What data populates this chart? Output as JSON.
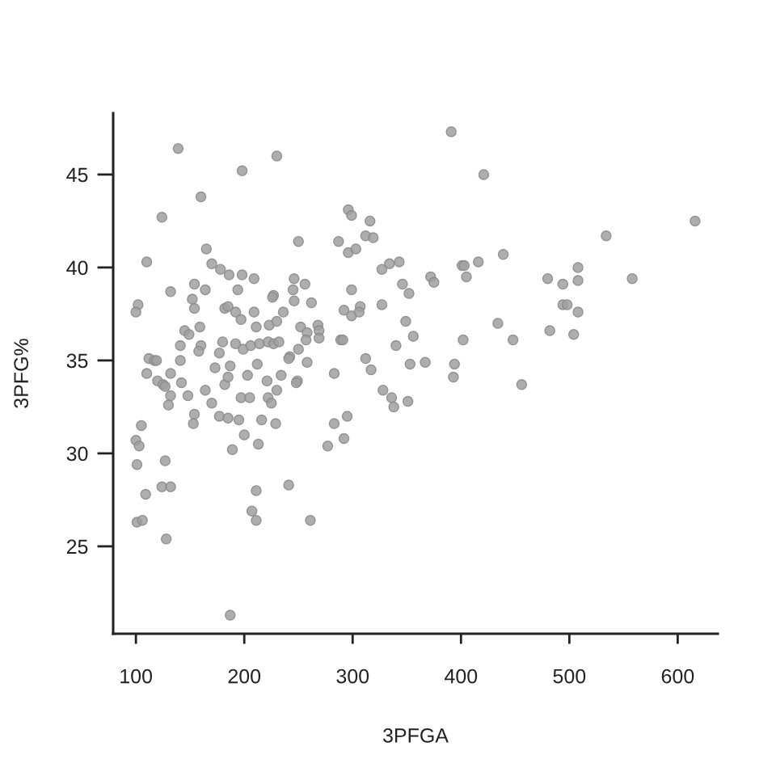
{
  "chart_data": {
    "type": "scatter",
    "xlabel": "3PFGA",
    "ylabel": "3PFG%",
    "marker": "circle",
    "xlim": [
      79,
      637
    ],
    "ylim": [
      20.3,
      48.3
    ],
    "xticks": [
      100,
      200,
      300,
      400,
      500,
      600
    ],
    "yticks": [
      25,
      30,
      35,
      40,
      45
    ],
    "series": [
      {
        "color": "#a0a0a0",
        "x": [
          139,
          230,
          198,
          160,
          124,
          296,
          299,
          316,
          312,
          319,
          287,
          296,
          303,
          250,
          165,
          110,
          170,
          178,
          186,
          198,
          209,
          132,
          154,
          164,
          152,
          154,
          102,
          100,
          194,
          182,
          185,
          192,
          197,
          209,
          227,
          226,
          246,
          256,
          245,
          246,
          262,
          236,
          211,
          223,
          230,
          159,
          145,
          149,
          252,
          258,
          268,
          269,
          257,
          269,
          289,
          291,
          299,
          292,
          299,
          307,
          306,
          327,
          327,
          334,
          343,
          346,
          349,
          340,
          312,
          353,
          141,
          160,
          158,
          180,
          177,
          192,
          199,
          206,
          214,
          222,
          227,
          232,
          250,
          242,
          241,
          258,
          212,
          141,
          112,
          117,
          119,
          173,
          187,
          110,
          132,
          120,
          125,
          127,
          142,
          132,
          130,
          148,
          164,
          170,
          154,
          153,
          177,
          185,
          195,
          182,
          185,
          203,
          197,
          205,
          200,
          189,
          216,
          213,
          221,
          222,
          225,
          230,
          234,
          249,
          248,
          229,
          283,
          317,
          328,
          336,
          338,
          351,
          295,
          283,
          277,
          292,
          105,
          100,
          103,
          101,
          127,
          109,
          124,
          132,
          101,
          106,
          128,
          187,
          211,
          241,
          207,
          211,
          261,
          391,
          421,
          616,
          534,
          439,
          416,
          401,
          403,
          405,
          372,
          375,
          352,
          480,
          494,
          508,
          508,
          558,
          494,
          498,
          508,
          434,
          448,
          402,
          482,
          504,
          356,
          367,
          394,
          393,
          456
        ],
        "values": [
          46.4,
          46.0,
          45.2,
          43.8,
          42.7,
          43.1,
          42.8,
          42.5,
          41.7,
          41.6,
          41.4,
          40.8,
          41.0,
          41.4,
          41.0,
          40.3,
          40.2,
          39.9,
          39.6,
          39.6,
          39.4,
          38.7,
          39.1,
          38.8,
          38.3,
          37.8,
          38.0,
          37.6,
          38.8,
          37.8,
          37.9,
          37.6,
          37.2,
          37.6,
          38.5,
          38.4,
          39.4,
          39.1,
          38.8,
          38.2,
          38.1,
          37.6,
          36.8,
          36.9,
          37.1,
          36.8,
          36.6,
          36.4,
          36.8,
          36.5,
          36.9,
          36.6,
          36.1,
          36.2,
          36.1,
          36.1,
          38.8,
          37.7,
          37.4,
          37.9,
          37.6,
          38.0,
          39.9,
          40.2,
          40.3,
          39.1,
          37.1,
          35.8,
          35.1,
          34.8,
          35.8,
          35.8,
          35.5,
          36.0,
          35.4,
          35.9,
          35.6,
          35.8,
          35.9,
          36.0,
          35.9,
          36.0,
          35.6,
          35.2,
          35.1,
          34.9,
          34.8,
          35.0,
          35.1,
          35.0,
          35.0,
          34.6,
          34.7,
          34.3,
          34.3,
          33.9,
          33.7,
          33.6,
          33.8,
          33.1,
          32.6,
          33.1,
          33.4,
          32.7,
          32.1,
          31.6,
          32.0,
          31.9,
          31.8,
          33.7,
          34.1,
          34.2,
          33.0,
          33.0,
          31.0,
          30.2,
          31.8,
          30.5,
          33.9,
          33.0,
          32.7,
          33.4,
          34.2,
          33.9,
          33.8,
          31.6,
          34.3,
          34.5,
          33.4,
          33.0,
          32.5,
          32.8,
          32.0,
          31.6,
          30.4,
          30.8,
          31.5,
          30.7,
          30.4,
          29.4,
          29.6,
          27.8,
          28.2,
          28.2,
          26.3,
          26.4,
          25.4,
          21.3,
          28.0,
          28.3,
          26.9,
          26.4,
          26.4,
          47.3,
          45.0,
          42.5,
          41.7,
          40.7,
          40.3,
          40.1,
          40.1,
          39.5,
          39.5,
          39.2,
          38.6,
          39.4,
          39.1,
          40.0,
          39.3,
          39.4,
          38.0,
          38.0,
          37.6,
          37.0,
          36.1,
          36.1,
          36.6,
          36.4,
          36.3,
          34.9,
          34.8,
          34.1,
          33.7
        ]
      }
    ]
  }
}
